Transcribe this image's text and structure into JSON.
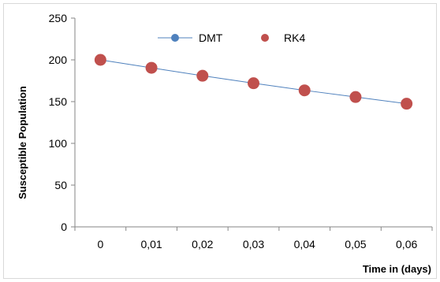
{
  "chart_data": {
    "type": "line",
    "title": "",
    "xlabel": "Time in (days)",
    "ylabel": "Susceptible Population",
    "categories": [
      "0",
      "0,01",
      "0,02",
      "0,03",
      "0,04",
      "0,05",
      "0,06"
    ],
    "ylim": [
      0,
      250
    ],
    "yticks": [
      "0",
      "50",
      "100",
      "150",
      "200",
      "250"
    ],
    "grid": false,
    "legend_position": "top",
    "series": [
      {
        "name": "DMT",
        "values": [
          200,
          190.5,
          181,
          172,
          163.5,
          155.5,
          147.5
        ],
        "color": "#4F81BD",
        "style": "line-with-markers"
      },
      {
        "name": "RK4",
        "values": [
          200,
          190.5,
          181,
          172,
          163.5,
          155.5,
          147.5
        ],
        "color": "#C0504D",
        "style": "markers"
      }
    ]
  }
}
